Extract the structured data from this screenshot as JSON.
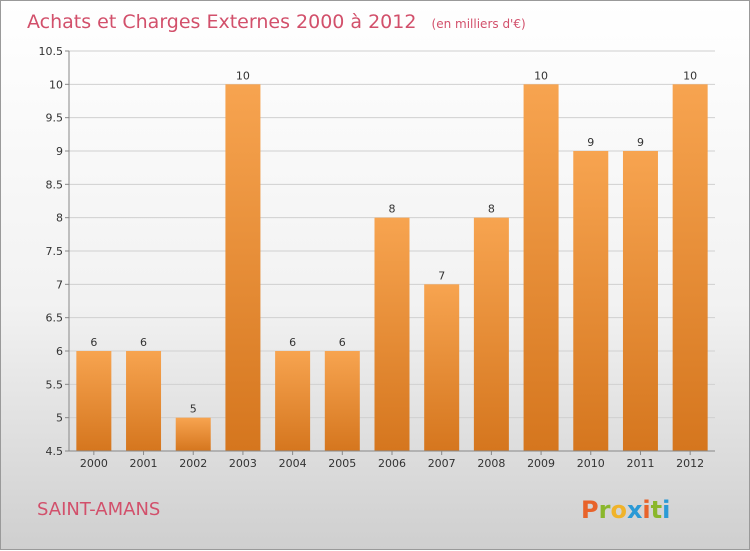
{
  "title": "Achats et Charges Externes 2000 à 2012",
  "unit": "(en milliers d'€)",
  "place": "SAINT-AMANS",
  "logo": "Proxiti",
  "colors": {
    "bar_top": "#f7a450",
    "bar_bottom": "#d5761e",
    "accent": "#d2506b",
    "grid": "#d0d0d0"
  },
  "chart_data": {
    "type": "bar",
    "categories": [
      "2000",
      "2001",
      "2002",
      "2003",
      "2004",
      "2005",
      "2006",
      "2007",
      "2008",
      "2009",
      "2010",
      "2011",
      "2012"
    ],
    "values": [
      6,
      6,
      5,
      10,
      6,
      6,
      8,
      7,
      8,
      10,
      9,
      9,
      10
    ],
    "title": "Achats et Charges Externes 2000 à 2012",
    "xlabel": "",
    "ylabel": "",
    "ylim": [
      4.5,
      10.5
    ],
    "yticks": [
      "4.5",
      "5",
      "5.5",
      "6",
      "6.5",
      "7",
      "7.5",
      "8",
      "8.5",
      "9",
      "9.5",
      "10",
      "10.5"
    ],
    "grid": true,
    "legend": "none"
  }
}
